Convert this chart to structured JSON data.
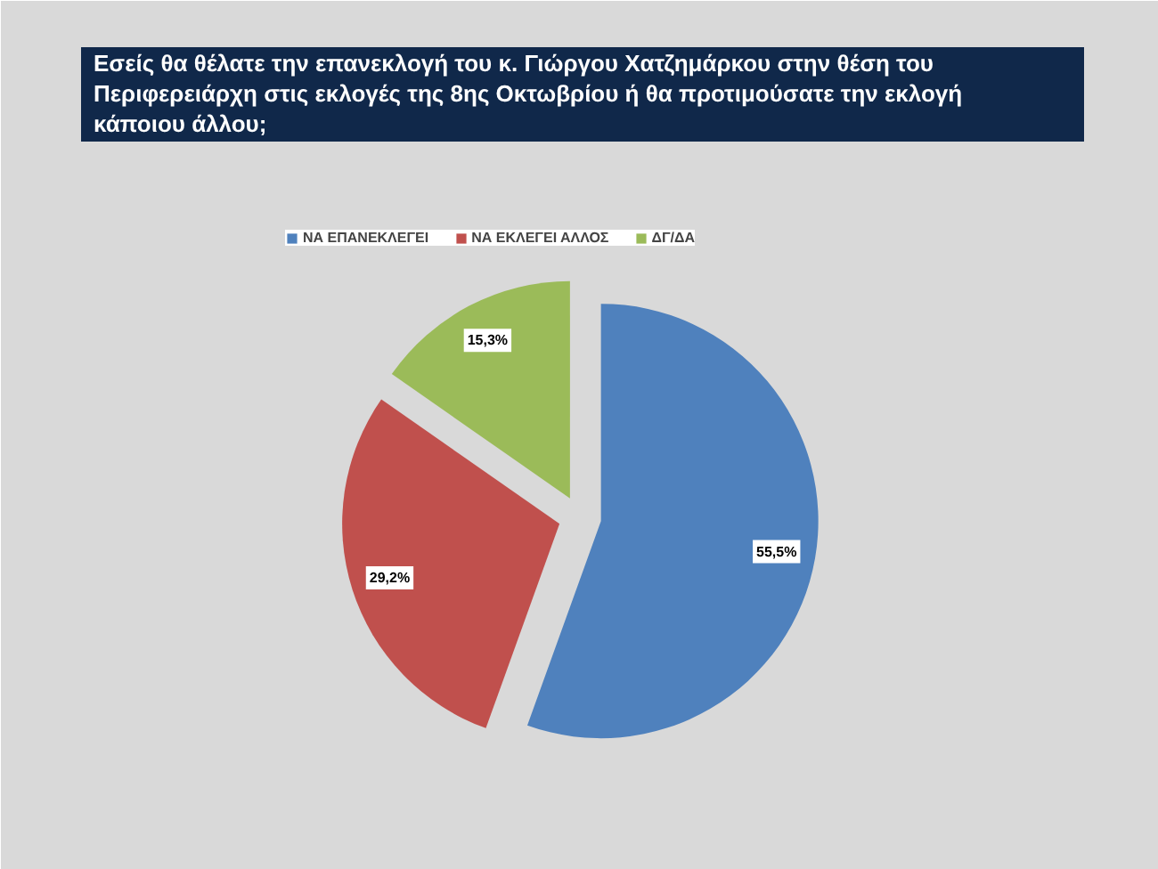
{
  "chart_data": {
    "type": "pie",
    "title": "Εσείς θα θέλατε την επανεκλογή του κ. Γιώργου Χατζημάρκου στην θέση του Περιφερειάρχη στις εκλογές της 8ης Οκτωβρίου ή θα προτιμούσατε την εκλογή κάποιου άλλου;",
    "categories": [
      "ΝΑ ΕΠΑΝΕΚΛΕΓΕΙ",
      "ΝΑ ΕΚΛΕΓΕΙ ΑΛΛΟΣ",
      "ΔΓ/ΔΑ"
    ],
    "values": [
      55.5,
      29.2,
      15.3
    ],
    "colors": [
      "#4f81bd",
      "#c0504d",
      "#9bbb59"
    ],
    "value_labels": [
      "55,5%",
      "29,2%",
      "15,3%"
    ],
    "legend": "top"
  }
}
